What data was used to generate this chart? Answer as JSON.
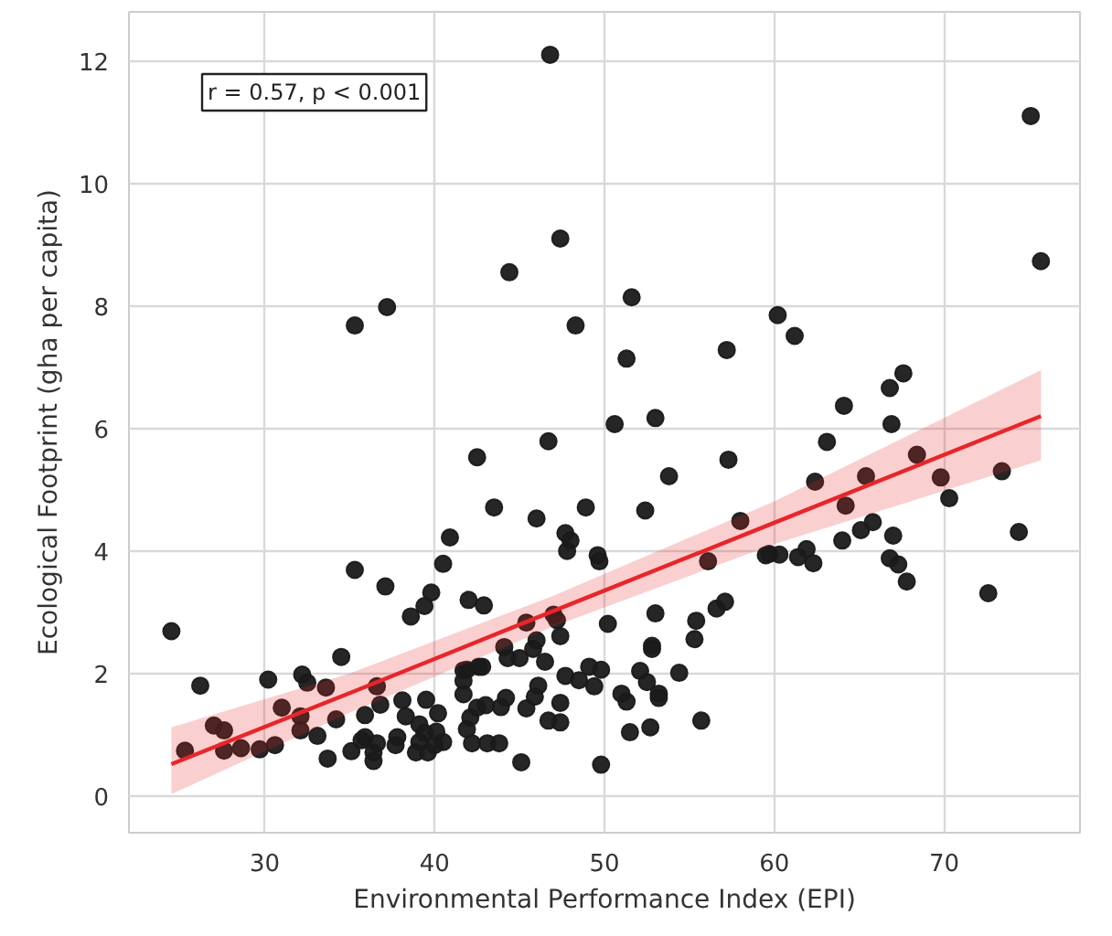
{
  "chart_data": {
    "type": "scatter",
    "xlabel": "Environmental Performance Index (EPI)",
    "ylabel": "Ecological Footprint (gha per capita)",
    "annotations": [
      "r = 0.57, p < 0.001"
    ],
    "xlim": [
      22,
      78
    ],
    "ylim": [
      -0.6,
      12.8
    ],
    "xticks": [
      30,
      40,
      50,
      60,
      70
    ],
    "yticks": [
      0,
      2,
      4,
      6,
      8,
      10,
      12
    ],
    "grid": true,
    "series": [
      {
        "color": "#1a1a1a",
        "marker": "circle",
        "x": [
          46.8,
          75.1,
          75.7,
          47.4,
          44.4,
          37.2,
          35.3,
          51.6,
          48.3,
          51.3,
          57.2,
          60.2,
          61.2,
          67.6,
          66.8,
          64.1,
          66.9,
          50.6,
          53.0,
          46.7,
          42.5,
          63.1,
          57.3,
          53.8,
          68.4,
          73.4,
          62.4,
          65.4,
          69.8,
          70.3,
          64.2,
          65.8,
          65.1,
          64.0,
          67.0,
          74.4,
          59.7,
          60.3,
          61.4,
          61.9,
          62.3,
          66.8,
          67.3,
          67.8,
          72.6,
          43.5,
          46.0,
          48.9,
          52.4,
          47.7,
          48.0,
          47.8,
          49.6,
          49.7,
          58.0,
          56.1,
          59.5,
          42.0,
          42.9,
          56.6,
          57.1,
          53.0,
          55.4,
          45.4,
          47.0,
          47.2,
          50.2,
          55.3,
          52.8,
          52.8,
          47.4,
          46.0,
          44.1,
          44.3,
          45.0,
          46.5,
          45.8,
          41.9,
          42.8,
          49.1,
          49.8,
          49.4,
          47.7,
          48.5,
          52.1,
          52.5,
          54.4,
          51.0,
          51.3,
          53.2,
          53.2,
          46.1,
          45.9,
          45.4,
          44.2,
          43.9,
          43.0,
          42.1,
          41.9,
          42.2,
          43.1,
          43.8,
          47.4,
          46.7,
          47.4,
          51.5,
          52.7,
          55.7,
          45.1,
          49.8,
          40.9,
          40.5,
          35.3,
          37.1,
          39.8,
          38.6,
          39.4,
          24.5,
          26.2,
          30.2,
          32.2,
          32.5,
          33.6,
          34.5,
          31.0,
          32.1,
          32.1,
          33.1,
          33.7,
          34.2,
          27.0,
          27.6,
          25.3,
          27.6,
          28.6,
          29.7,
          30.6,
          35.1,
          35.7,
          35.9,
          36.8,
          35.9,
          36.4,
          36.6,
          37.7,
          37.8,
          38.1,
          39.5,
          38.3,
          39.1,
          39.4,
          39.1,
          40.0,
          40.5,
          38.9,
          39.6,
          36.4,
          40.2,
          40.1,
          41.7,
          41.7,
          41.7,
          42.6,
          42.5,
          36.6
        ],
        "values": [
          12.1,
          11.1,
          8.73,
          9.1,
          8.55,
          7.98,
          7.68,
          8.14,
          7.68,
          7.14,
          7.28,
          7.85,
          7.51,
          6.9,
          6.66,
          6.37,
          6.07,
          6.07,
          6.17,
          5.79,
          5.53,
          5.78,
          5.49,
          5.22,
          5.57,
          5.3,
          5.13,
          5.22,
          5.2,
          4.86,
          4.74,
          4.47,
          4.34,
          4.17,
          4.25,
          4.31,
          3.95,
          3.94,
          3.9,
          4.03,
          3.8,
          3.88,
          3.78,
          3.5,
          3.31,
          4.71,
          4.53,
          4.71,
          4.66,
          4.29,
          4.17,
          4.0,
          3.93,
          3.83,
          4.49,
          3.83,
          3.93,
          3.2,
          3.11,
          3.06,
          3.17,
          2.98,
          2.86,
          2.83,
          2.96,
          2.87,
          2.81,
          2.56,
          2.45,
          2.4,
          2.61,
          2.54,
          2.43,
          2.25,
          2.25,
          2.19,
          2.4,
          2.06,
          2.11,
          2.11,
          2.06,
          1.79,
          1.96,
          1.89,
          2.04,
          1.86,
          2.01,
          1.67,
          1.54,
          1.67,
          1.6,
          1.8,
          1.62,
          1.43,
          1.6,
          1.45,
          1.48,
          1.28,
          1.09,
          0.86,
          0.86,
          0.86,
          1.52,
          1.23,
          1.2,
          1.04,
          1.12,
          1.23,
          0.55,
          0.51,
          4.22,
          3.79,
          3.69,
          3.42,
          3.32,
          2.93,
          3.1,
          2.69,
          1.8,
          1.9,
          1.98,
          1.85,
          1.77,
          2.27,
          1.44,
          1.3,
          1.07,
          0.98,
          0.61,
          1.25,
          1.15,
          1.07,
          0.74,
          0.74,
          0.78,
          0.76,
          0.83,
          0.73,
          0.91,
          1.32,
          1.49,
          0.96,
          0.71,
          0.86,
          0.83,
          0.96,
          1.56,
          1.57,
          1.3,
          1.17,
          1.03,
          0.88,
          0.83,
          0.88,
          0.71,
          0.71,
          0.57,
          1.35,
          1.05,
          2.05,
          1.88,
          1.66,
          2.11,
          1.44,
          1.79
        ]
      },
      {
        "type": "line",
        "marker": "none",
        "color": "#e8262a",
        "x": [
          24.5,
          35,
          47,
          60,
          75.7
        ],
        "values": [
          0.52,
          1.68,
          3.02,
          4.46,
          6.2
        ],
        "lower": [
          0.03,
          1.36,
          2.77,
          4.11,
          5.48
        ],
        "upper": [
          1.12,
          2.0,
          3.27,
          4.81,
          6.95
        ]
      }
    ]
  }
}
